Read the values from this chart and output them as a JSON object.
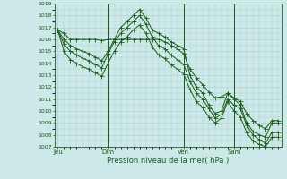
{
  "bg_color": "#cce8e8",
  "grid_color": "#aad0cc",
  "line_color": "#1a5c1a",
  "title": "Pression niveau de la mer( hPa )",
  "ylim": [
    1007,
    1019
  ],
  "yticks": [
    1007,
    1008,
    1009,
    1010,
    1011,
    1012,
    1013,
    1014,
    1015,
    1016,
    1017,
    1018,
    1019
  ],
  "xtick_labels": [
    "Jeu",
    "Dim",
    "Ven",
    "Sam"
  ],
  "xtick_positions": [
    0,
    8,
    20,
    28
  ],
  "total_points": 36,
  "series1": [
    1016.8,
    1016.5,
    1016.0,
    1016.0,
    1016.0,
    1016.0,
    1016.0,
    1015.9,
    1016.0,
    1016.0,
    1016.0,
    1016.0,
    1016.0,
    1016.0,
    1016.0,
    1016.0,
    1016.0,
    1015.8,
    1015.5,
    1015.2,
    1014.8,
    1013.5,
    1012.8,
    1012.2,
    1011.6,
    1011.1,
    1011.2,
    1011.5,
    1011.1,
    1010.8,
    1009.8,
    1009.2,
    1008.8,
    1008.5,
    1009.2,
    1009.2
  ],
  "series2": [
    1016.8,
    1016.0,
    1015.5,
    1015.2,
    1015.0,
    1014.8,
    1014.5,
    1014.2,
    1015.0,
    1016.0,
    1017.0,
    1017.5,
    1018.0,
    1018.5,
    1017.8,
    1016.8,
    1016.5,
    1016.2,
    1015.8,
    1015.5,
    1015.2,
    1013.0,
    1012.0,
    1011.5,
    1010.5,
    1009.8,
    1010.0,
    1011.5,
    1011.0,
    1010.5,
    1009.0,
    1008.3,
    1008.0,
    1007.8,
    1009.0,
    1009.0
  ],
  "series3": [
    1016.8,
    1015.6,
    1015.0,
    1014.7,
    1014.4,
    1014.2,
    1013.9,
    1013.6,
    1014.8,
    1015.8,
    1016.5,
    1017.0,
    1017.5,
    1018.0,
    1017.3,
    1016.2,
    1015.5,
    1015.2,
    1014.7,
    1014.3,
    1013.9,
    1012.5,
    1011.5,
    1011.0,
    1010.2,
    1009.4,
    1009.7,
    1011.0,
    1010.5,
    1010.2,
    1008.8,
    1008.0,
    1007.6,
    1007.3,
    1008.2,
    1008.2
  ],
  "series4": [
    1016.8,
    1015.0,
    1014.3,
    1014.0,
    1013.7,
    1013.5,
    1013.2,
    1012.9,
    1014.0,
    1015.0,
    1015.8,
    1016.2,
    1016.8,
    1017.2,
    1016.5,
    1015.4,
    1014.7,
    1014.4,
    1013.9,
    1013.5,
    1013.1,
    1011.8,
    1010.8,
    1010.3,
    1009.5,
    1009.0,
    1009.4,
    1010.8,
    1010.0,
    1009.5,
    1008.2,
    1007.5,
    1007.2,
    1007.0,
    1007.8,
    1007.8
  ],
  "vline_positions": [
    8,
    20,
    28
  ]
}
